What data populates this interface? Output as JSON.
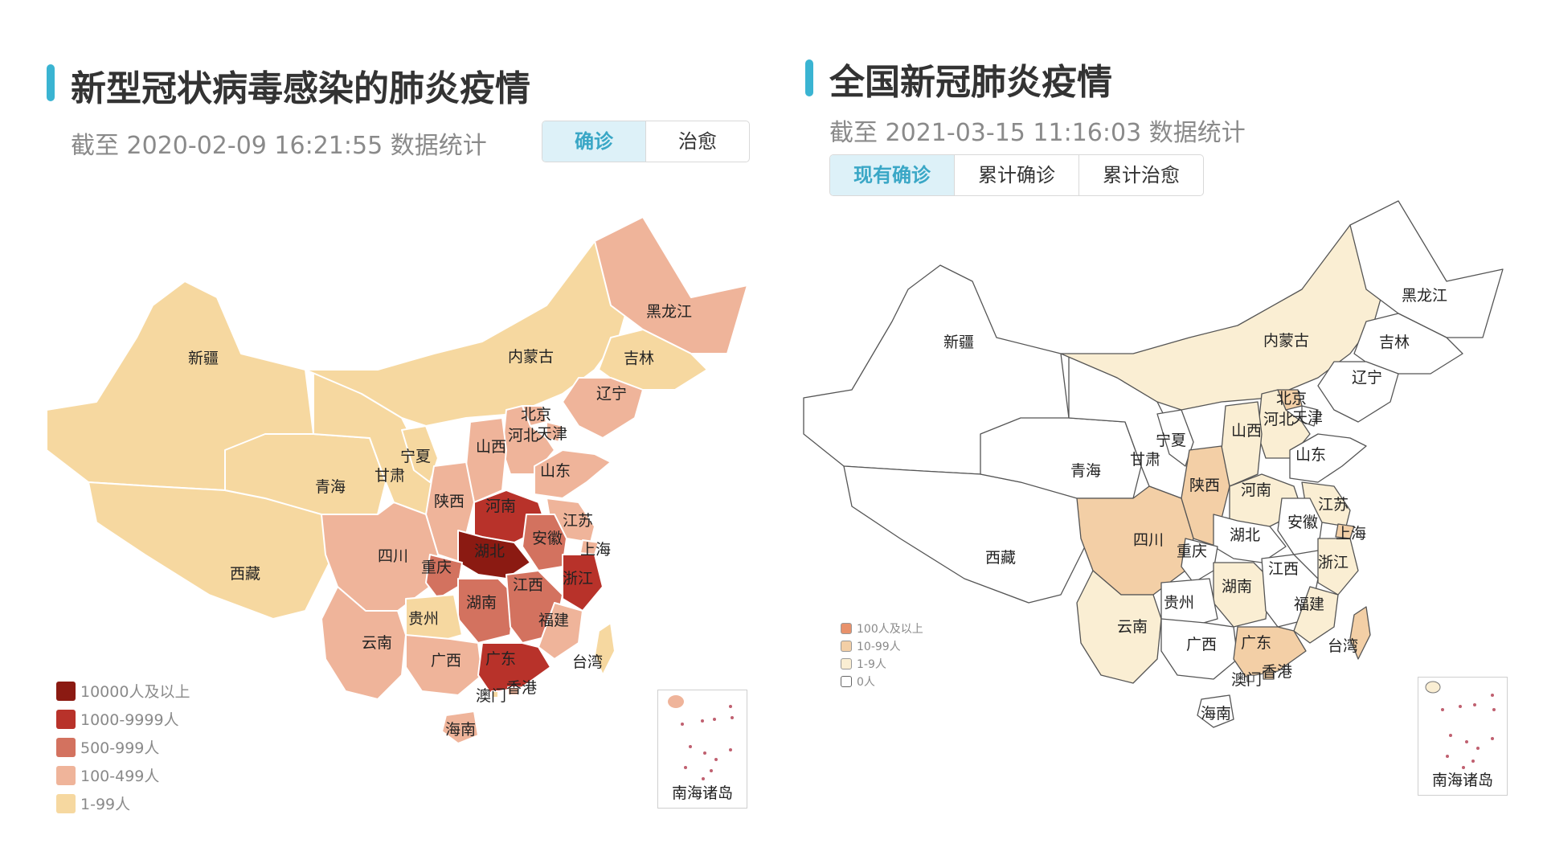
{
  "left": {
    "title": "新型冠状病毒感染的肺炎疫情",
    "subtitle": "截至 2020-02-09 16:21:55 数据统计",
    "tabs": [
      {
        "label": "确诊",
        "active": true
      },
      {
        "label": "治愈",
        "active": false
      }
    ],
    "legend": [
      {
        "label": "10000人及以上",
        "color": "#8b1a12"
      },
      {
        "label": "1000-9999人",
        "color": "#b8322a"
      },
      {
        "label": "500-999人",
        "color": "#d3725f"
      },
      {
        "label": "100-499人",
        "color": "#efb49a"
      },
      {
        "label": "1-99人",
        "color": "#f6d8a0"
      }
    ],
    "inset_label": "南海诸岛",
    "provinces": [
      {
        "name": "新疆",
        "color": "#f6d8a0"
      },
      {
        "name": "西藏",
        "color": "#f6d8a0"
      },
      {
        "name": "青海",
        "color": "#f6d8a0"
      },
      {
        "name": "甘肃",
        "color": "#f6d8a0"
      },
      {
        "name": "宁夏",
        "color": "#f6d8a0"
      },
      {
        "name": "内蒙古",
        "color": "#f6d8a0"
      },
      {
        "name": "黑龙江",
        "color": "#efb49a"
      },
      {
        "name": "吉林",
        "color": "#f6d8a0"
      },
      {
        "name": "辽宁",
        "color": "#efb49a"
      },
      {
        "name": "北京",
        "color": "#efb49a"
      },
      {
        "name": "天津",
        "color": "#efb49a"
      },
      {
        "name": "河北",
        "color": "#efb49a"
      },
      {
        "name": "山西",
        "color": "#efb49a"
      },
      {
        "name": "山东",
        "color": "#efb49a"
      },
      {
        "name": "陕西",
        "color": "#efb49a"
      },
      {
        "name": "河南",
        "color": "#b8322a"
      },
      {
        "name": "江苏",
        "color": "#efb49a"
      },
      {
        "name": "安徽",
        "color": "#d3725f"
      },
      {
        "name": "上海",
        "color": "#efb49a"
      },
      {
        "name": "湖北",
        "color": "#8b1a12"
      },
      {
        "name": "四川",
        "color": "#efb49a"
      },
      {
        "name": "重庆",
        "color": "#d3725f"
      },
      {
        "name": "浙江",
        "color": "#b8322a"
      },
      {
        "name": "湖南",
        "color": "#d3725f"
      },
      {
        "name": "江西",
        "color": "#d3725f"
      },
      {
        "name": "贵州",
        "color": "#f6d8a0"
      },
      {
        "name": "福建",
        "color": "#efb49a"
      },
      {
        "name": "云南",
        "color": "#efb49a"
      },
      {
        "name": "广西",
        "color": "#efb49a"
      },
      {
        "name": "广东",
        "color": "#b8322a"
      },
      {
        "name": "台湾",
        "color": "#f6d8a0"
      },
      {
        "name": "澳门",
        "color": "#f6d8a0"
      },
      {
        "name": "香港",
        "color": "#efb49a"
      },
      {
        "name": "海南",
        "color": "#efb49a"
      }
    ]
  },
  "right": {
    "title": "全国新冠肺炎疫情",
    "subtitle": "截至 2021-03-15 11:16:03 数据统计",
    "tabs": [
      {
        "label": "现有确诊",
        "active": true
      },
      {
        "label": "累计确诊",
        "active": false
      },
      {
        "label": "累计治愈",
        "active": false
      }
    ],
    "legend": [
      {
        "label": "100人及以上",
        "color": "#e8916b"
      },
      {
        "label": "10-99人",
        "color": "#f3cfa6"
      },
      {
        "label": "1-9人",
        "color": "#faeed3"
      },
      {
        "label": "0人",
        "color": "#ffffff"
      }
    ],
    "inset_label": "南海诸岛",
    "provinces": [
      {
        "name": "新疆",
        "color": "#ffffff"
      },
      {
        "name": "西藏",
        "color": "#ffffff"
      },
      {
        "name": "青海",
        "color": "#ffffff"
      },
      {
        "name": "甘肃",
        "color": "#ffffff"
      },
      {
        "name": "宁夏",
        "color": "#ffffff"
      },
      {
        "name": "内蒙古",
        "color": "#faeed3"
      },
      {
        "name": "黑龙江",
        "color": "#ffffff"
      },
      {
        "name": "吉林",
        "color": "#ffffff"
      },
      {
        "name": "辽宁",
        "color": "#ffffff"
      },
      {
        "name": "北京",
        "color": "#f3cfa6"
      },
      {
        "name": "天津",
        "color": "#ffffff"
      },
      {
        "name": "河北",
        "color": "#faeed3"
      },
      {
        "name": "山西",
        "color": "#faeed3"
      },
      {
        "name": "山东",
        "color": "#ffffff"
      },
      {
        "name": "陕西",
        "color": "#f3cfa6"
      },
      {
        "name": "河南",
        "color": "#faeed3"
      },
      {
        "name": "江苏",
        "color": "#faeed3"
      },
      {
        "name": "安徽",
        "color": "#ffffff"
      },
      {
        "name": "上海",
        "color": "#f3cfa6"
      },
      {
        "name": "湖北",
        "color": "#ffffff"
      },
      {
        "name": "四川",
        "color": "#f3cfa6"
      },
      {
        "name": "重庆",
        "color": "#ffffff"
      },
      {
        "name": "浙江",
        "color": "#faeed3"
      },
      {
        "name": "湖南",
        "color": "#faeed3"
      },
      {
        "name": "江西",
        "color": "#ffffff"
      },
      {
        "name": "贵州",
        "color": "#ffffff"
      },
      {
        "name": "福建",
        "color": "#faeed3"
      },
      {
        "name": "云南",
        "color": "#faeed3"
      },
      {
        "name": "广西",
        "color": "#ffffff"
      },
      {
        "name": "广东",
        "color": "#f3cfa6"
      },
      {
        "name": "台湾",
        "color": "#f3cfa6"
      },
      {
        "name": "澳门",
        "color": "#ffffff"
      },
      {
        "name": "香港",
        "color": "#f3cfa6"
      },
      {
        "name": "海南",
        "color": "#ffffff"
      }
    ]
  }
}
